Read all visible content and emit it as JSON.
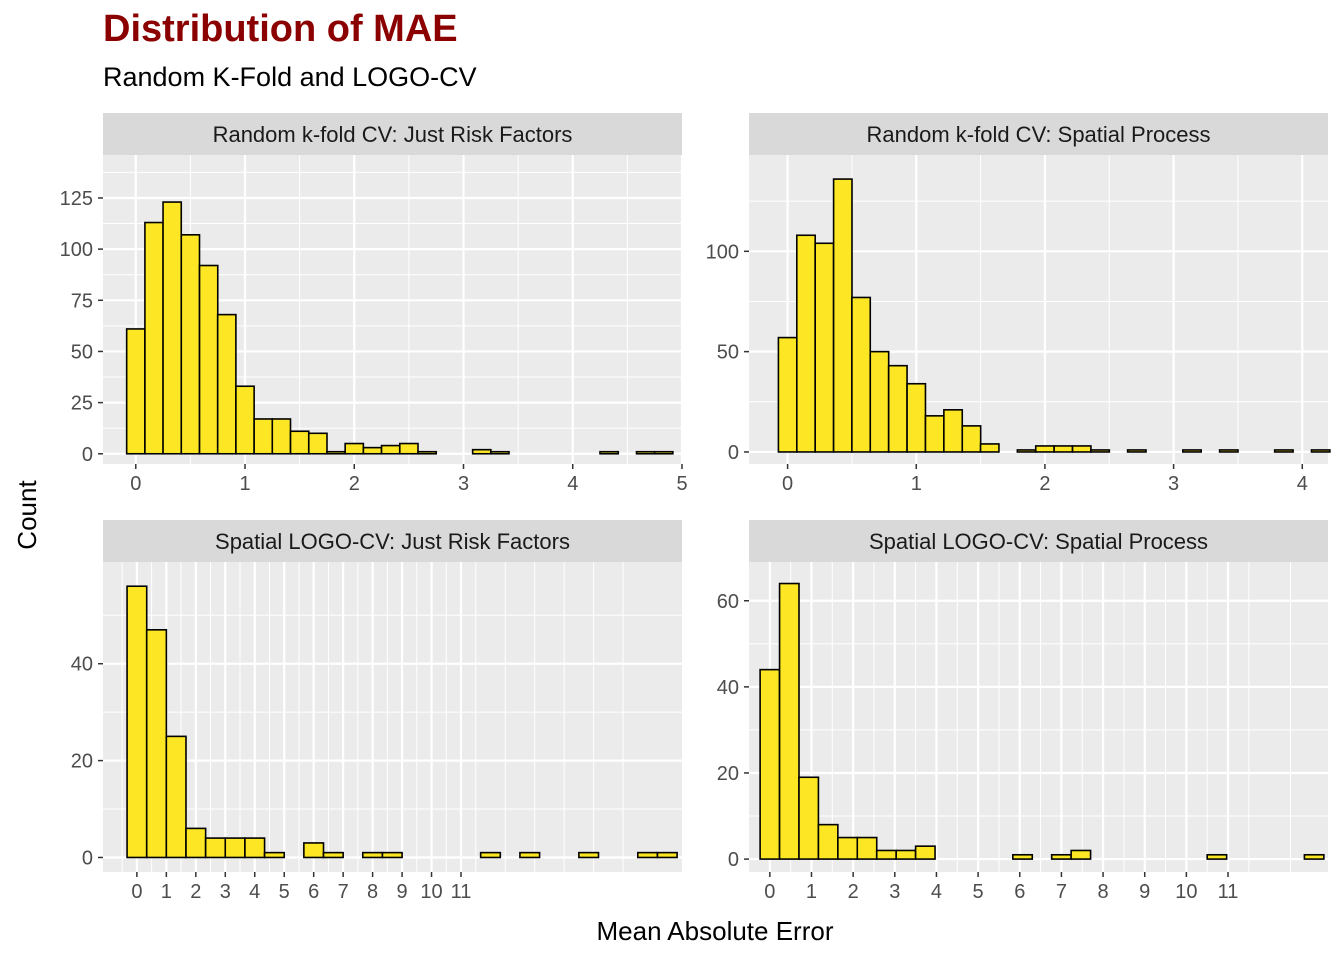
{
  "title": "Distribution of MAE",
  "subtitle": "Random K-Fold and LOGO-CV",
  "xlabel": "Mean Absolute Error",
  "ylabel": "Count",
  "colors": {
    "bar_fill": "#FDE725",
    "bar_stroke": "#000000",
    "panel_bg": "#EBEBEB",
    "strip_bg": "#D9D9D9",
    "grid": "#FFFFFF"
  },
  "chart_data": [
    {
      "type": "bar",
      "panel": "Random k-fold CV: Just Risk Factors",
      "xlim": [
        -0.3,
        5.0
      ],
      "ylim": [
        -5,
        146
      ],
      "xticks": [
        "0",
        "1",
        "2",
        "3",
        "4",
        "5"
      ],
      "yticks": [
        "0",
        "25",
        "50",
        "75",
        "100",
        "125"
      ],
      "bin_width": 0.1667,
      "bins_x": [
        0,
        0.167,
        0.333,
        0.5,
        0.667,
        0.833,
        1.0,
        1.167,
        1.333,
        1.5,
        1.667,
        1.833,
        2.0,
        2.167,
        2.333,
        2.5,
        2.667,
        2.833,
        3.0,
        3.167,
        3.333,
        3.5,
        3.667,
        3.833,
        4.0,
        4.167,
        4.333,
        4.5,
        4.667,
        4.833
      ],
      "counts": [
        61,
        113,
        123,
        107,
        92,
        68,
        33,
        17,
        17,
        11,
        10,
        1,
        5,
        3,
        4,
        5,
        1,
        0,
        0,
        2,
        1,
        0,
        0,
        0,
        0,
        0,
        1,
        0,
        1,
        1
      ]
    },
    {
      "type": "bar",
      "panel": "Random k-fold CV: Spatial Process",
      "xlim": [
        -0.3,
        4.2
      ],
      "ylim": [
        -6,
        148
      ],
      "xticks": [
        "0",
        "1",
        "2",
        "3",
        "4"
      ],
      "yticks": [
        "0",
        "50",
        "100"
      ],
      "bin_width": 0.1429,
      "bins_x": [
        0,
        0.143,
        0.286,
        0.429,
        0.571,
        0.714,
        0.857,
        1.0,
        1.143,
        1.286,
        1.429,
        1.571,
        1.714,
        1.857,
        2.0,
        2.143,
        2.286,
        2.429,
        2.571,
        2.714,
        2.857,
        3.0,
        3.143,
        3.286,
        3.429,
        3.571,
        3.714,
        3.857,
        4.0,
        4.143
      ],
      "counts": [
        57,
        108,
        104,
        136,
        77,
        50,
        43,
        34,
        18,
        21,
        13,
        4,
        0,
        1,
        3,
        3,
        3,
        1,
        0,
        1,
        0,
        0,
        1,
        0,
        1,
        0,
        0,
        1,
        0,
        1
      ]
    },
    {
      "type": "bar",
      "panel": "Spatial LOGO-CV: Just Risk Factors",
      "xlim": [
        -1.15,
        18.5
      ],
      "ylim": [
        -3,
        61
      ],
      "xticks": [
        "0",
        "1",
        "2",
        "3",
        "4",
        "5",
        "6",
        "7",
        "8",
        "9",
        "10",
        "11"
      ],
      "yticks": [
        "0",
        "20",
        "40"
      ],
      "bin_width": 0.6667,
      "bins_x": [
        0,
        0.667,
        1.333,
        2.0,
        2.667,
        3.333,
        4.0,
        4.667,
        5.333,
        6.0,
        6.667,
        7.333,
        8.0,
        8.667,
        9.333,
        10.0,
        10.667,
        11.333,
        12.0,
        12.667,
        13.333,
        14.0,
        14.667,
        15.333,
        16.0,
        16.667,
        17.333,
        18.0
      ],
      "counts": [
        56,
        47,
        25,
        6,
        4,
        4,
        4,
        1,
        0,
        3,
        1,
        0,
        1,
        1,
        0,
        0,
        0,
        0,
        1,
        0,
        1,
        0,
        0,
        1,
        0,
        0,
        1,
        1
      ]
    },
    {
      "type": "bar",
      "panel": "Spatial LOGO-CV: Spatial Process",
      "xlim": [
        -0.5,
        13.4
      ],
      "ylim": [
        -3,
        69
      ],
      "xticks": [
        "0",
        "1",
        "2",
        "3",
        "4",
        "5",
        "6",
        "7",
        "8",
        "9",
        "10",
        "11"
      ],
      "yticks": [
        "0",
        "20",
        "40",
        "60"
      ],
      "bin_width": 0.4667,
      "bins_x": [
        0,
        0.467,
        0.933,
        1.4,
        1.867,
        2.333,
        2.8,
        3.267,
        3.733,
        4.2,
        4.667,
        5.133,
        5.6,
        6.067,
        6.533,
        7.0,
        7.467,
        7.933,
        8.4,
        8.867,
        9.333,
        9.8,
        10.267,
        10.733,
        11.2,
        11.667,
        12.133,
        12.6,
        13.067
      ],
      "counts": [
        44,
        64,
        19,
        8,
        5,
        5,
        2,
        2,
        3,
        0,
        0,
        0,
        0,
        1,
        0,
        1,
        2,
        0,
        0,
        0,
        0,
        0,
        0,
        1,
        0,
        0,
        0,
        0,
        1
      ]
    }
  ]
}
